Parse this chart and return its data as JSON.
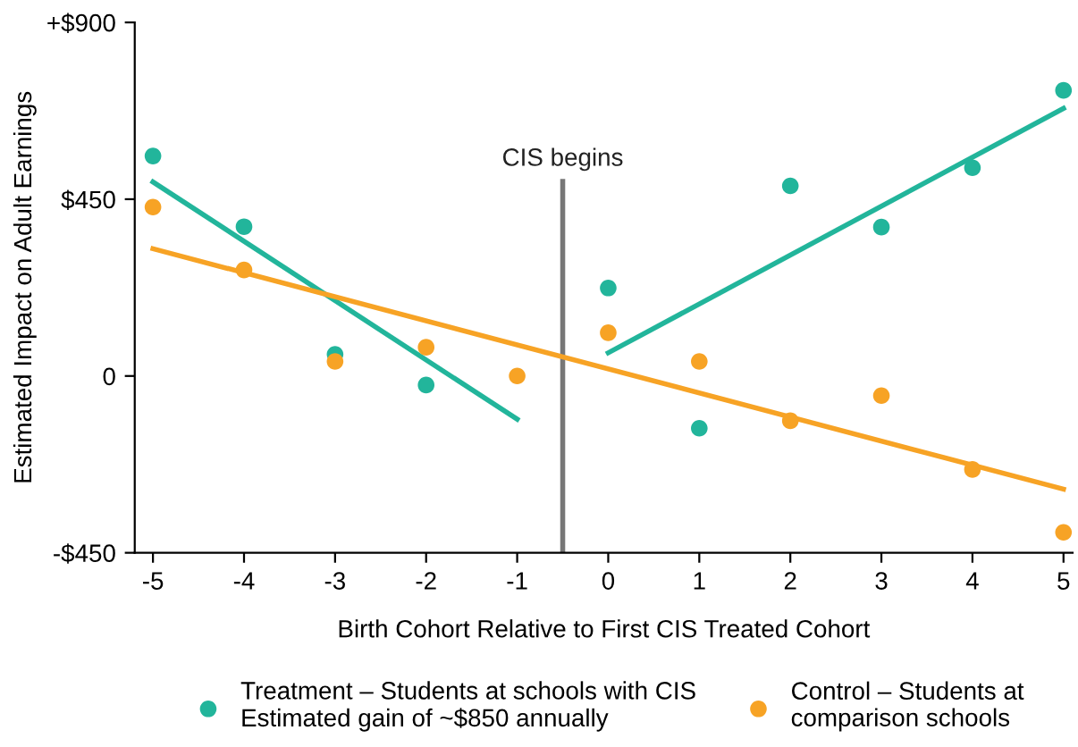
{
  "chart_data": {
    "type": "scatter",
    "xlabel": "Birth Cohort Relative to First CIS Treated Cohort",
    "ylabel": "Estimated Impact on Adult Earnings",
    "x": [
      -5,
      -4,
      -3,
      -2,
      -1,
      0,
      1,
      2,
      3,
      4,
      5
    ],
    "series": [
      {
        "name": "Treatment – Students at schools with CIS\nEstimated gain of ~$850 annually",
        "color": "#22b59b",
        "values": [
          560,
          380,
          55,
          -23,
          null,
          224,
          -133,
          484,
          379,
          530,
          727
        ]
      },
      {
        "name": "Control – Students at\ncomparison schools",
        "color": "#f7a325",
        "values": [
          430,
          270,
          37,
          73,
          0,
          110,
          37,
          -114,
          -50,
          -238,
          -398
        ]
      },
      {
        "type": "line",
        "marker": "none",
        "color": "#22b59b",
        "x": [
          -5,
          -1
        ],
        "values": [
          494,
          -110
        ]
      },
      {
        "type": "line",
        "marker": "none",
        "color": "#22b59b",
        "x": [
          0,
          5
        ],
        "values": [
          59,
          681
        ]
      },
      {
        "type": "line",
        "marker": "none",
        "color": "#f7a325",
        "x": [
          -5,
          5
        ],
        "values": [
          324,
          -288
        ]
      }
    ],
    "ref_lines": [
      {
        "axis": "x",
        "value": -0.5,
        "label": "CIS begins",
        "color": "#777777"
      }
    ],
    "xlim": [
      -5.2,
      5.1
    ],
    "xticks": [
      -5,
      -4,
      -3,
      -2,
      -1,
      0,
      1,
      2,
      3,
      4,
      5
    ],
    "ylim": [
      -450,
      900
    ],
    "yticks": [
      {
        "value": 900,
        "label": "+$900"
      },
      {
        "value": 450,
        "label": "$450"
      },
      0,
      {
        "value": -450,
        "label": "-$450"
      }
    ],
    "grid": false,
    "legend": "bottom",
    "marker": "circle"
  }
}
